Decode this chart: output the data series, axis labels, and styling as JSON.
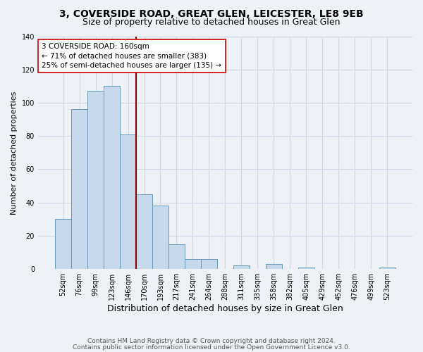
{
  "title": "3, COVERSIDE ROAD, GREAT GLEN, LEICESTER, LE8 9EB",
  "subtitle": "Size of property relative to detached houses in Great Glen",
  "xlabel": "Distribution of detached houses by size in Great Glen",
  "ylabel": "Number of detached properties",
  "bar_color": "#c8d9ec",
  "bar_edge_color": "#6699bb",
  "categories": [
    "52sqm",
    "76sqm",
    "99sqm",
    "123sqm",
    "146sqm",
    "170sqm",
    "193sqm",
    "217sqm",
    "241sqm",
    "264sqm",
    "288sqm",
    "311sqm",
    "335sqm",
    "358sqm",
    "382sqm",
    "405sqm",
    "429sqm",
    "452sqm",
    "476sqm",
    "499sqm",
    "523sqm"
  ],
  "values": [
    30,
    96,
    107,
    110,
    81,
    45,
    38,
    15,
    6,
    6,
    0,
    2,
    0,
    3,
    0,
    1,
    0,
    0,
    0,
    0,
    1
  ],
  "ylim": [
    0,
    140
  ],
  "yticks": [
    0,
    20,
    40,
    60,
    80,
    100,
    120,
    140
  ],
  "vline_x_idx": 4.5,
  "vline_color": "#8b0000",
  "annotation_text": "3 COVERSIDE ROAD: 160sqm\n← 71% of detached houses are smaller (383)\n25% of semi-detached houses are larger (135) →",
  "annotation_fontsize": 7.5,
  "annotation_box_color": "white",
  "annotation_box_edge": "#cc0000",
  "footer1": "Contains HM Land Registry data © Crown copyright and database right 2024.",
  "footer2": "Contains public sector information licensed under the Open Government Licence v3.0.",
  "background_color": "#eef2f7",
  "grid_color": "#d0d8e8",
  "title_fontsize": 10,
  "subtitle_fontsize": 9,
  "xlabel_fontsize": 9,
  "ylabel_fontsize": 8,
  "tick_fontsize": 7,
  "footer_fontsize": 6.5
}
